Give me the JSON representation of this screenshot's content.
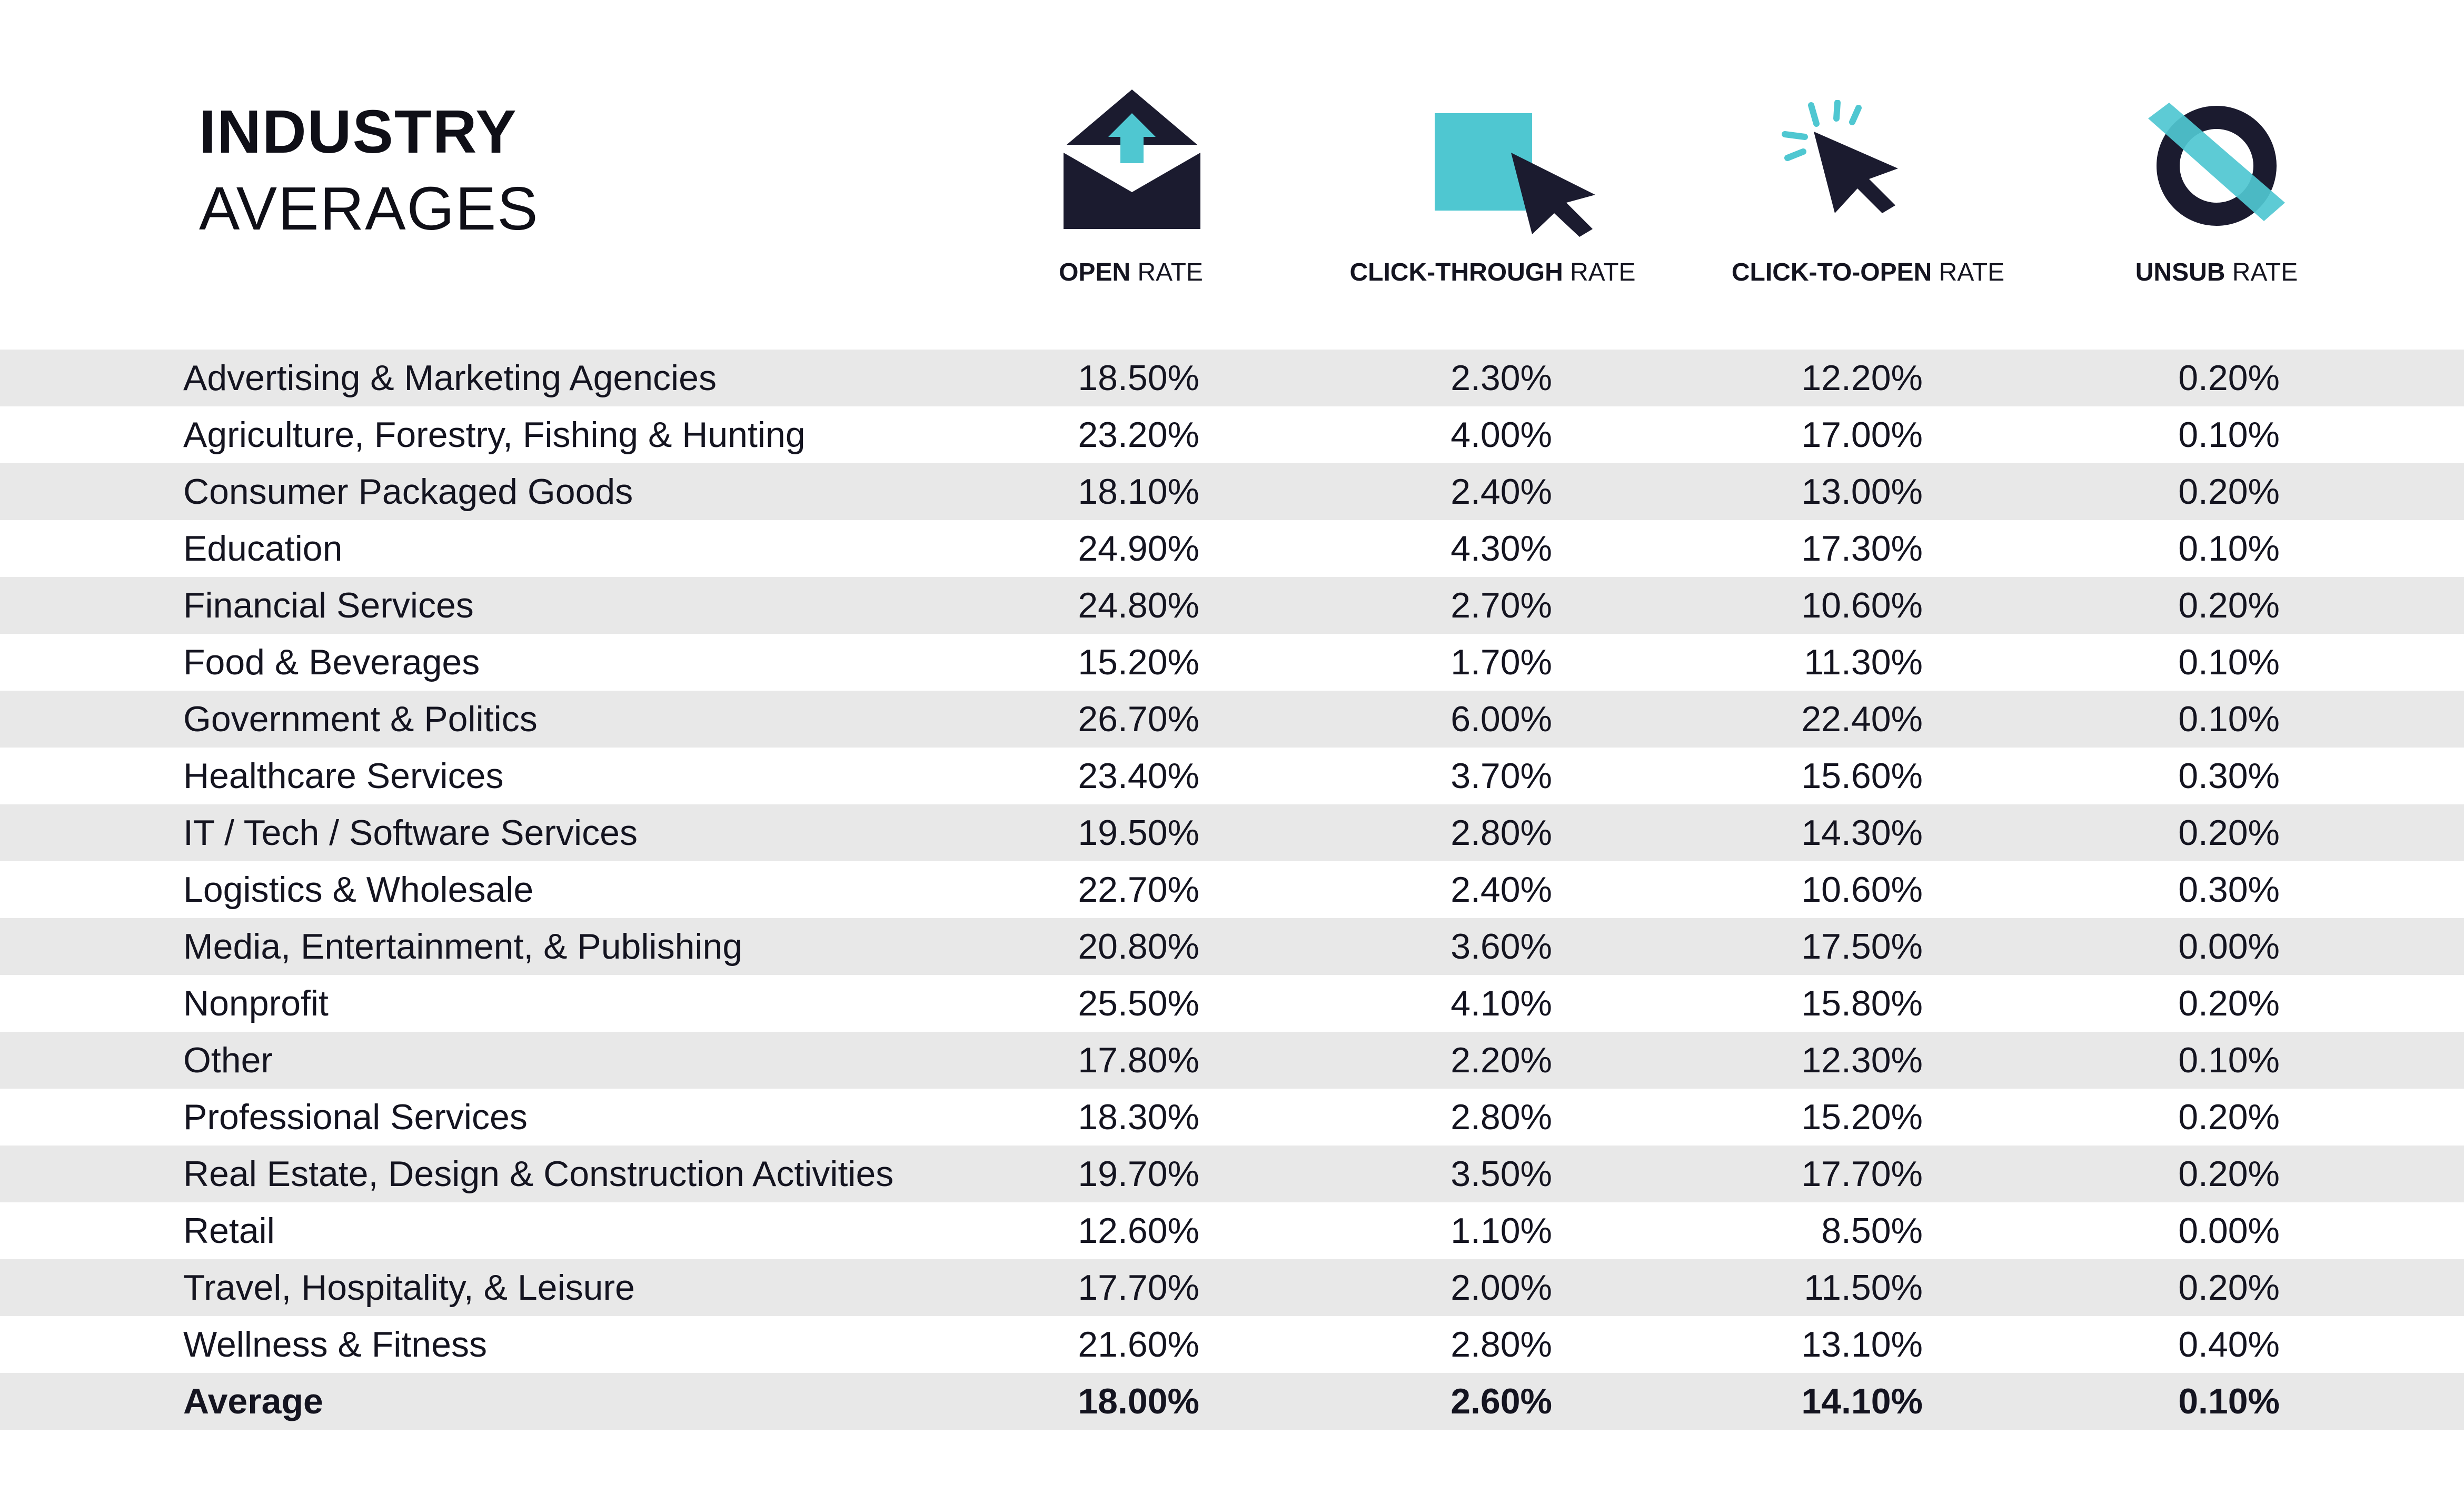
{
  "title": {
    "line1": "INDUSTRY",
    "line2": "AVERAGES"
  },
  "colors": {
    "dark": "#1b1b2f",
    "accent": "#4fc7d1",
    "row_alt": "#e8e8e8"
  },
  "columns": [
    {
      "icon": "envelope-icon",
      "bold": "OPEN",
      "rest": " RATE"
    },
    {
      "icon": "click-square-icon",
      "bold": "CLICK-THROUGH",
      "rest": " RATE"
    },
    {
      "icon": "cursor-click-icon",
      "bold": "CLICK-TO-OPEN",
      "rest": " RATE"
    },
    {
      "icon": "unsubscribe-icon",
      "bold": "UNSUB",
      "rest": " RATE"
    }
  ],
  "chart_data": {
    "type": "table",
    "columns": [
      "OPEN RATE",
      "CLICK-THROUGH RATE",
      "CLICK-TO-OPEN RATE",
      "UNSUB RATE"
    ],
    "rows": [
      {
        "industry": "Advertising & Marketing Agencies",
        "values": [
          "18.50%",
          "2.30%",
          "12.20%",
          "0.20%"
        ]
      },
      {
        "industry": "Agriculture, Forestry, Fishing & Hunting",
        "values": [
          "23.20%",
          "4.00%",
          "17.00%",
          "0.10%"
        ]
      },
      {
        "industry": "Consumer Packaged Goods",
        "values": [
          "18.10%",
          "2.40%",
          "13.00%",
          "0.20%"
        ]
      },
      {
        "industry": "Education",
        "values": [
          "24.90%",
          "4.30%",
          "17.30%",
          "0.10%"
        ]
      },
      {
        "industry": "Financial Services",
        "values": [
          "24.80%",
          "2.70%",
          "10.60%",
          "0.20%"
        ]
      },
      {
        "industry": "Food & Beverages",
        "values": [
          "15.20%",
          "1.70%",
          "11.30%",
          "0.10%"
        ]
      },
      {
        "industry": "Government & Politics",
        "values": [
          "26.70%",
          "6.00%",
          "22.40%",
          "0.10%"
        ]
      },
      {
        "industry": "Healthcare Services",
        "values": [
          "23.40%",
          "3.70%",
          "15.60%",
          "0.30%"
        ]
      },
      {
        "industry": "IT / Tech / Software Services",
        "values": [
          "19.50%",
          "2.80%",
          "14.30%",
          "0.20%"
        ]
      },
      {
        "industry": "Logistics & Wholesale",
        "values": [
          "22.70%",
          "2.40%",
          "10.60%",
          "0.30%"
        ]
      },
      {
        "industry": "Media, Entertainment, & Publishing",
        "values": [
          "20.80%",
          "3.60%",
          "17.50%",
          "0.00%"
        ]
      },
      {
        "industry": "Nonprofit",
        "values": [
          "25.50%",
          "4.10%",
          "15.80%",
          "0.20%"
        ]
      },
      {
        "industry": "Other",
        "values": [
          "17.80%",
          "2.20%",
          "12.30%",
          "0.10%"
        ]
      },
      {
        "industry": "Professional Services",
        "values": [
          "18.30%",
          "2.80%",
          "15.20%",
          "0.20%"
        ]
      },
      {
        "industry": "Real Estate, Design & Construction Activities",
        "values": [
          "19.70%",
          "3.50%",
          "17.70%",
          "0.20%"
        ]
      },
      {
        "industry": "Retail",
        "values": [
          "12.60%",
          "1.10%",
          "8.50%",
          "0.00%"
        ]
      },
      {
        "industry": "Travel, Hospitality, & Leisure",
        "values": [
          "17.70%",
          "2.00%",
          "11.50%",
          "0.20%"
        ]
      },
      {
        "industry": "Wellness & Fitness",
        "values": [
          "21.60%",
          "2.80%",
          "13.10%",
          "0.40%"
        ]
      }
    ],
    "average": {
      "industry": "Average",
      "values": [
        "18.00%",
        "2.60%",
        "14.10%",
        "0.10%"
      ]
    }
  }
}
